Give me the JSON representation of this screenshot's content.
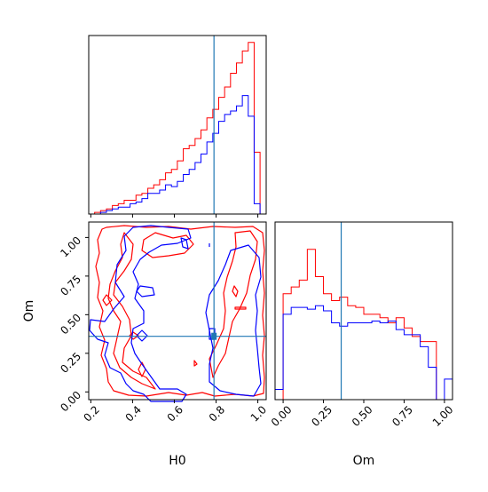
{
  "colors": {
    "series_a": "#ff0000",
    "series_b": "#0000ff",
    "truth": "#1f77b4",
    "axes": "#000000"
  },
  "axis_labels": {
    "h0": "H0",
    "om": "Om"
  },
  "ticks": {
    "h0": [
      "0.2",
      "0.4",
      "0.6",
      "0.8",
      "1.0"
    ],
    "om": [
      "0.00",
      "0.25",
      "0.50",
      "0.75",
      "1.00"
    ]
  },
  "chart_data": [
    {
      "type": "histogram",
      "panel": "H0 marginal",
      "x_range": [
        0.19,
        1.04
      ],
      "y_range": [
        0,
        1.04
      ],
      "y_ticks_shown": false,
      "bin_edges_start": 0.19,
      "bin_width": 0.0283,
      "truth_x": 0.79,
      "series": [
        {
          "color_key": "series_a",
          "values": [
            0.0,
            0.01,
            0.02,
            0.03,
            0.05,
            0.06,
            0.08,
            0.08,
            0.11,
            0.12,
            0.15,
            0.17,
            0.2,
            0.24,
            0.26,
            0.31,
            0.38,
            0.4,
            0.44,
            0.49,
            0.56,
            0.61,
            0.68,
            0.74,
            0.82,
            0.88,
            0.95,
            1.0,
            0.36,
            0.0
          ]
        },
        {
          "color_key": "series_b",
          "values": [
            0.0,
            0.0,
            0.01,
            0.02,
            0.03,
            0.04,
            0.04,
            0.06,
            0.07,
            0.09,
            0.12,
            0.12,
            0.14,
            0.17,
            0.16,
            0.19,
            0.23,
            0.26,
            0.3,
            0.35,
            0.42,
            0.47,
            0.54,
            0.58,
            0.6,
            0.63,
            0.69,
            0.57,
            0.06,
            0.0
          ]
        }
      ]
    },
    {
      "type": "contour",
      "panel": "H0 vs Om joint",
      "x_range": [
        0.19,
        1.04
      ],
      "y_range": [
        -0.05,
        1.1
      ],
      "truth_x": 0.79,
      "truth_y": 0.36,
      "series": [
        {
          "color_key": "series_a",
          "name_shown": false
        },
        {
          "color_key": "series_b",
          "name_shown": false
        }
      ]
    },
    {
      "type": "histogram",
      "panel": "Om marginal",
      "x_range": [
        -0.05,
        1.05
      ],
      "y_range": [
        0,
        1.04
      ],
      "y_ticks_shown": false,
      "bin_edges_start": -0.05,
      "bin_width": 0.05,
      "truth_x": 0.36,
      "series": [
        {
          "color_key": "series_a",
          "values": [
            0.0,
            0.62,
            0.66,
            0.7,
            0.88,
            0.72,
            0.62,
            0.58,
            0.6,
            0.55,
            0.54,
            0.5,
            0.5,
            0.48,
            0.45,
            0.48,
            0.42,
            0.37,
            0.34,
            0.34,
            0.0,
            0.0
          ]
        },
        {
          "color_key": "series_b",
          "values": [
            0.06,
            0.5,
            0.54,
            0.54,
            0.53,
            0.55,
            0.52,
            0.45,
            0.43,
            0.45,
            0.45,
            0.45,
            0.46,
            0.45,
            0.46,
            0.41,
            0.38,
            0.38,
            0.31,
            0.19,
            0.0,
            0.12
          ]
        }
      ]
    }
  ]
}
